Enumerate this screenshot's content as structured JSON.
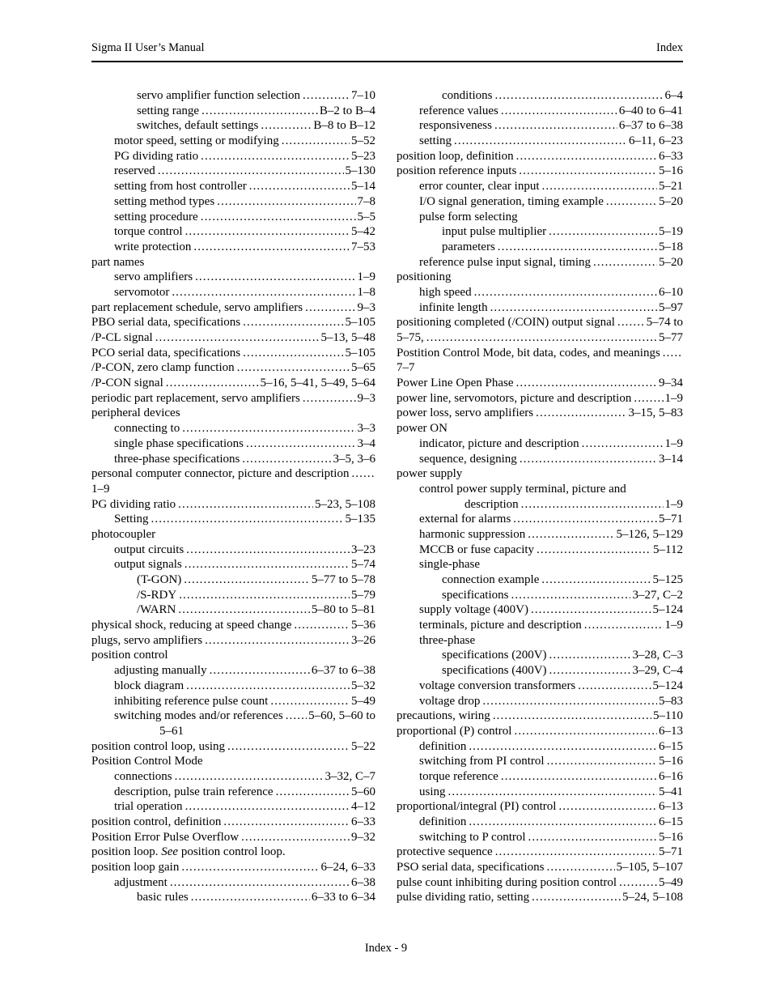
{
  "header": {
    "left": "Sigma II User’s Manual",
    "right": "Index"
  },
  "footer": {
    "text": "Index - 9"
  },
  "index": {
    "left_column": [
      {
        "indent": 2,
        "label": "servo amplifier function selection",
        "page": "7–10"
      },
      {
        "indent": 2,
        "label": "setting range",
        "page": "B–2 to B–4"
      },
      {
        "indent": 2,
        "label": "switches, default settings",
        "page": "B–8 to B–12"
      },
      {
        "indent": 1,
        "label": "motor speed, setting or modifying",
        "page": "5–52"
      },
      {
        "indent": 1,
        "label": "PG dividing ratio",
        "page": "5–23"
      },
      {
        "indent": 1,
        "label": "reserved",
        "page": "5–130"
      },
      {
        "indent": 1,
        "label": "setting from host controller",
        "page": "5–14"
      },
      {
        "indent": 1,
        "label": "setting method types",
        "page": "7–8"
      },
      {
        "indent": 1,
        "label": "setting procedure",
        "page": "5–5"
      },
      {
        "indent": 1,
        "label": "torque control",
        "page": "5–42"
      },
      {
        "indent": 1,
        "label": "write protection",
        "page": "7–53"
      },
      {
        "indent": 0,
        "label": "part names"
      },
      {
        "indent": 1,
        "label": "servo amplifiers",
        "page": "1–9"
      },
      {
        "indent": 1,
        "label": "servomotor",
        "page": "1–8"
      },
      {
        "indent": 0,
        "label": "part replacement schedule, servo amplifiers",
        "page": "9–3"
      },
      {
        "indent": 0,
        "label": "PBO serial data, specifications",
        "page": "5–105"
      },
      {
        "indent": 0,
        "label": "/P-CL signal",
        "page": "5–13, 5–48"
      },
      {
        "indent": 0,
        "label": "PCO serial data, specifications",
        "page": "5–105"
      },
      {
        "indent": 0,
        "label": "/P-CON, zero clamp function",
        "page": "5–65"
      },
      {
        "indent": 0,
        "label": "/P-CON signal",
        "page": "5–16, 5–41, 5–49, 5–64"
      },
      {
        "indent": 0,
        "label": "periodic part replacement, servo amplifiers",
        "page": "9–3"
      },
      {
        "indent": 0,
        "label": "peripheral devices"
      },
      {
        "indent": 1,
        "label": "connecting to",
        "page": "3–3"
      },
      {
        "indent": 1,
        "label": "single phase specifications",
        "page": "3–4"
      },
      {
        "indent": 1,
        "label": "three-phase specifications",
        "page": "3–5, 3–6"
      },
      {
        "indent": 0,
        "label": "personal computer connector, picture and description",
        "page": ""
      },
      {
        "indent": 0,
        "label": "1–9"
      },
      {
        "indent": 0,
        "label": "PG dividing ratio",
        "page": "5–23, 5–108"
      },
      {
        "indent": 1,
        "label": "Setting",
        "page": "5–135"
      },
      {
        "indent": 0,
        "label": "photocoupler"
      },
      {
        "indent": 1,
        "label": "output circuits",
        "page": "3–23"
      },
      {
        "indent": 1,
        "label": "output signals",
        "page": "5–74"
      },
      {
        "indent": 2,
        "label": "(T-GON)",
        "page": "5–77 to 5–78"
      },
      {
        "indent": 2,
        "label": "/S-RDY",
        "page": "5–79"
      },
      {
        "indent": 2,
        "label": "/WARN",
        "page": "5–80 to 5–81"
      },
      {
        "indent": 0,
        "label": "physical shock, reducing at speed change",
        "page": "5–36"
      },
      {
        "indent": 0,
        "label": "plugs, servo amplifiers",
        "page": "3–26"
      },
      {
        "indent": 0,
        "label": "position control"
      },
      {
        "indent": 1,
        "label": "adjusting manually",
        "page": "6–37 to 6–38"
      },
      {
        "indent": 1,
        "label": "block diagram",
        "page": "5–32"
      },
      {
        "indent": 1,
        "label": "inhibiting reference pulse count",
        "page": "5–49"
      },
      {
        "indent": 1,
        "label": "switching modes and/or references",
        "page": "5–60, 5–60 to"
      },
      {
        "indent": 3,
        "label": "5–61"
      },
      {
        "indent": 0,
        "label": "position control loop, using",
        "page": "5–22"
      },
      {
        "indent": 0,
        "label": "Position Control Mode"
      },
      {
        "indent": 1,
        "label": "connections",
        "page": "3–32, C–7"
      },
      {
        "indent": 1,
        "label": "description, pulse train reference",
        "page": "5–60"
      },
      {
        "indent": 1,
        "label": "trial operation",
        "page": "4–12"
      },
      {
        "indent": 0,
        "label": "position control, definition",
        "page": "6–33"
      },
      {
        "indent": 0,
        "label": "Position Error Pulse Overflow",
        "page": "9–32"
      },
      {
        "indent": 0,
        "parts": [
          {
            "t": "position loop. "
          },
          {
            "t": "See",
            "it": true
          },
          {
            "t": " position control loop."
          }
        ]
      },
      {
        "indent": 0,
        "label": "position loop gain",
        "page": "6–24, 6–33"
      },
      {
        "indent": 1,
        "label": "adjustment",
        "page": "6–38"
      },
      {
        "indent": 2,
        "label": "basic rules",
        "page": "6–33 to 6–34"
      }
    ],
    "right_column": [
      {
        "indent": 2,
        "label": "conditions",
        "page": "6–4"
      },
      {
        "indent": 1,
        "label": "reference values",
        "page": "6–40 to 6–41"
      },
      {
        "indent": 1,
        "label": "responsiveness",
        "page": "6–37 to 6–38"
      },
      {
        "indent": 1,
        "label": "setting",
        "page": "6–11, 6–23"
      },
      {
        "indent": 0,
        "label": "position loop, definition",
        "page": "6–33"
      },
      {
        "indent": 0,
        "label": "position reference inputs",
        "page": "5–16"
      },
      {
        "indent": 1,
        "label": "error counter, clear input",
        "page": "5–21"
      },
      {
        "indent": 1,
        "label": "I/O signal generation, timing example",
        "page": "5–20"
      },
      {
        "indent": 1,
        "label": "pulse form selecting"
      },
      {
        "indent": 2,
        "label": "input pulse multiplier",
        "page": "5–19"
      },
      {
        "indent": 2,
        "label": "parameters",
        "page": "5–18"
      },
      {
        "indent": 1,
        "label": "reference pulse input signal, timing",
        "page": "5–20"
      },
      {
        "indent": 0,
        "label": "positioning"
      },
      {
        "indent": 1,
        "label": "high speed",
        "page": "6–10"
      },
      {
        "indent": 1,
        "label": "infinite length",
        "page": "5–97"
      },
      {
        "indent": 0,
        "label": "positioning completed (/COIN) output signal",
        "page": "5–74 to"
      },
      {
        "indent": 0,
        "label": "5–75,",
        "page": "5–77"
      },
      {
        "indent": 0,
        "label": "Postition Control Mode, bit data, codes, and meanings",
        "page": ""
      },
      {
        "indent": 0,
        "label": "7–7"
      },
      {
        "indent": 0,
        "label": "Power Line Open Phase",
        "page": "9–34"
      },
      {
        "indent": 0,
        "label": "power line, servomotors, picture and description",
        "page": "1–9"
      },
      {
        "indent": 0,
        "label": "power loss, servo amplifiers",
        "page": "3–15, 5–83"
      },
      {
        "indent": 0,
        "label": "power ON"
      },
      {
        "indent": 1,
        "label": "indicator, picture and description",
        "page": "1–9"
      },
      {
        "indent": 1,
        "label": "sequence, designing",
        "page": "3–14"
      },
      {
        "indent": 0,
        "label": "power supply"
      },
      {
        "indent": 1,
        "label": "control power supply terminal, picture and"
      },
      {
        "indent": 3,
        "label": "description",
        "page": "1–9"
      },
      {
        "indent": 1,
        "label": "external for alarms",
        "page": "5–71"
      },
      {
        "indent": 1,
        "label": "harmonic suppression",
        "page": "5–126, 5–129"
      },
      {
        "indent": 1,
        "label": "MCCB or fuse capacity",
        "page": "5–112"
      },
      {
        "indent": 1,
        "label": "single-phase"
      },
      {
        "indent": 2,
        "label": "connection example",
        "page": "5–125"
      },
      {
        "indent": 2,
        "label": "specifications",
        "page": "3–27, C–2"
      },
      {
        "indent": 1,
        "label": "supply voltage (400V)",
        "page": "5–124"
      },
      {
        "indent": 1,
        "label": "terminals, picture and description",
        "page": "1–9"
      },
      {
        "indent": 1,
        "label": "three-phase"
      },
      {
        "indent": 2,
        "label": "specifications (200V)",
        "page": "3–28, C–3"
      },
      {
        "indent": 2,
        "label": "specifications (400V)",
        "page": "3–29, C–4"
      },
      {
        "indent": 1,
        "label": "voltage conversion transformers",
        "page": "5–124"
      },
      {
        "indent": 1,
        "label": "voltage drop",
        "page": "5–83"
      },
      {
        "indent": 0,
        "label": "precautions, wiring",
        "page": "5–110"
      },
      {
        "indent": 0,
        "label": "proportional (P) control",
        "page": "6–13"
      },
      {
        "indent": 1,
        "label": "definition",
        "page": "6–15"
      },
      {
        "indent": 1,
        "label": "switching from PI control",
        "page": "5–16"
      },
      {
        "indent": 1,
        "label": "torque reference",
        "page": "6–16"
      },
      {
        "indent": 1,
        "label": "using",
        "page": "5–41"
      },
      {
        "indent": 0,
        "label": "proportional/integral (PI) control",
        "page": "6–13"
      },
      {
        "indent": 1,
        "label": "definition",
        "page": "6–15"
      },
      {
        "indent": 1,
        "label": "switching to P control",
        "page": "5–16"
      },
      {
        "indent": 0,
        "label": "protective sequence",
        "page": "5–71"
      },
      {
        "indent": 0,
        "label": "PSO serial data, specifications",
        "page": "5–105, 5–107"
      },
      {
        "indent": 0,
        "label": "pulse count inhibiting during position control",
        "page": "5–49"
      },
      {
        "indent": 0,
        "label": "pulse dividing ratio, setting",
        "page": "5–24, 5–108"
      }
    ]
  }
}
